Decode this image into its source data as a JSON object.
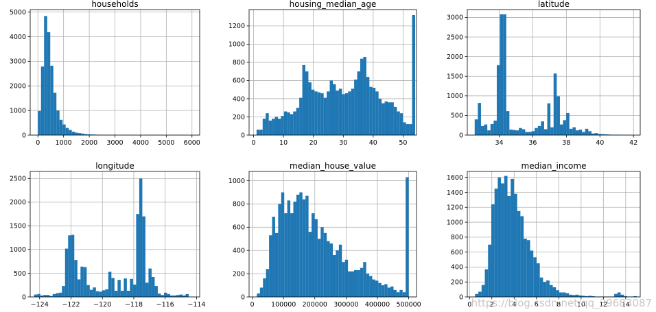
{
  "figure": {
    "bar_color": "#1f77b4",
    "grid_color": "#b0b0b0",
    "watermark": "https://blog.csdn.net/qq_39683087"
  },
  "chart_data": [
    {
      "type": "bar",
      "title": "households",
      "xlabel": "",
      "ylabel": "",
      "grid": true,
      "xlim": [
        -300,
        6300
      ],
      "ylim": [
        0,
        5100
      ],
      "xticks": [
        0,
        1000,
        2000,
        3000,
        4000,
        5000,
        6000
      ],
      "yticks": [
        0,
        1000,
        2000,
        3000,
        4000,
        5000
      ],
      "bin_start": 1,
      "bin_width": 120,
      "values": [
        980,
        2790,
        4840,
        4180,
        2820,
        1720,
        1000,
        620,
        430,
        290,
        210,
        140,
        100,
        80,
        60,
        40,
        30,
        25,
        20,
        15,
        12,
        10,
        8,
        6,
        5,
        5,
        4,
        3,
        3,
        2,
        2,
        2,
        1,
        1,
        1,
        1,
        1,
        1,
        1,
        1,
        1,
        1,
        1,
        1,
        1,
        1,
        1,
        1,
        1,
        1
      ]
    },
    {
      "type": "bar",
      "title": "housing_median_age",
      "xlabel": "",
      "ylabel": "",
      "grid": true,
      "xlim": [
        -1.5,
        54.5
      ],
      "ylim": [
        0,
        1380
      ],
      "xticks": [
        0,
        10,
        20,
        30,
        40,
        50
      ],
      "yticks": [
        0,
        200,
        400,
        600,
        800,
        1000,
        1200
      ],
      "bin_start": 1,
      "bin_width": 1.02,
      "values": [
        60,
        60,
        180,
        240,
        160,
        180,
        200,
        180,
        210,
        260,
        250,
        230,
        260,
        300,
        410,
        770,
        700,
        580,
        500,
        480,
        470,
        460,
        410,
        480,
        600,
        560,
        490,
        510,
        450,
        460,
        480,
        510,
        610,
        700,
        840,
        860,
        640,
        530,
        520,
        480,
        400,
        350,
        370,
        360,
        360,
        310,
        260,
        240,
        140,
        120,
        120,
        1320
      ]
    },
    {
      "type": "bar",
      "title": "latitude",
      "xlabel": "",
      "ylabel": "",
      "grid": true,
      "xlim": [
        32.1,
        42.4
      ],
      "ylim": [
        0,
        3200
      ],
      "xticks": [
        34,
        36,
        38,
        40,
        42
      ],
      "yticks": [
        0,
        500,
        1000,
        1500,
        2000,
        2500,
        3000
      ],
      "bin_start": 32.54,
      "bin_width": 0.188,
      "values": [
        400,
        820,
        230,
        270,
        120,
        280,
        370,
        1780,
        3080,
        3080,
        610,
        140,
        130,
        120,
        180,
        150,
        80,
        80,
        100,
        180,
        230,
        350,
        150,
        810,
        200,
        1570,
        990,
        270,
        380,
        560,
        160,
        200,
        120,
        140,
        80,
        160,
        100,
        40,
        50,
        30,
        25,
        20,
        15,
        10,
        10,
        10,
        5,
        5,
        5,
        5
      ]
    },
    {
      "type": "bar",
      "title": "longitude",
      "xlabel": "",
      "ylabel": "",
      "grid": true,
      "xlim": [
        -124.6,
        -113.8
      ],
      "ylim": [
        0,
        2650
      ],
      "xticks": [
        -124,
        -122,
        -120,
        -118,
        -116,
        -114
      ],
      "yticks": [
        0,
        500,
        1000,
        1500,
        2000,
        2500
      ],
      "bin_start": -124.35,
      "bin_width": 0.197,
      "values": [
        50,
        60,
        30,
        40,
        40,
        20,
        60,
        80,
        90,
        230,
        1020,
        1300,
        1310,
        780,
        370,
        640,
        630,
        250,
        150,
        200,
        120,
        110,
        140,
        160,
        530,
        400,
        130,
        360,
        130,
        390,
        130,
        380,
        260,
        1750,
        2500,
        1700,
        300,
        600,
        420,
        230,
        70,
        40,
        90,
        60,
        30,
        30,
        40,
        50,
        30,
        60
      ]
    },
    {
      "type": "bar",
      "title": "median_house_value",
      "xlabel": "",
      "ylabel": "",
      "grid": true,
      "xlim": [
        -10000,
        525000
      ],
      "ylim": [
        0,
        1080
      ],
      "xticks": [
        0,
        100000,
        200000,
        300000,
        400000,
        500000
      ],
      "yticks": [
        0,
        200,
        400,
        600,
        800,
        1000
      ],
      "bin_start": 14999,
      "bin_width": 9700,
      "values": [
        30,
        80,
        160,
        240,
        530,
        690,
        550,
        800,
        900,
        720,
        830,
        720,
        820,
        880,
        900,
        840,
        870,
        560,
        720,
        670,
        500,
        600,
        550,
        480,
        460,
        360,
        400,
        450,
        300,
        320,
        220,
        220,
        230,
        230,
        250,
        300,
        200,
        180,
        150,
        140,
        120,
        100,
        110,
        80,
        90,
        60,
        40,
        60,
        40,
        1030
      ]
    },
    {
      "type": "bar",
      "title": "median_income",
      "xlabel": "",
      "ylabel": "",
      "grid": true,
      "xlim": [
        -0.2,
        15.3
      ],
      "ylim": [
        0,
        1680
      ],
      "xticks": [
        0,
        2,
        4,
        6,
        8,
        10,
        12,
        14
      ],
      "yticks": [
        0,
        200,
        400,
        600,
        800,
        1000,
        1200,
        1400,
        1600
      ],
      "bin_start": 0.5,
      "bin_width": 0.29,
      "values": [
        40,
        70,
        160,
        370,
        700,
        1240,
        1450,
        1600,
        1520,
        1620,
        1350,
        1580,
        1380,
        1150,
        1080,
        780,
        760,
        620,
        530,
        450,
        260,
        200,
        220,
        160,
        130,
        90,
        60,
        60,
        50,
        30,
        25,
        30,
        20,
        15,
        10,
        15,
        10,
        5,
        5,
        5,
        5,
        5,
        5,
        40,
        60,
        30,
        10,
        5,
        5,
        10
      ]
    }
  ]
}
